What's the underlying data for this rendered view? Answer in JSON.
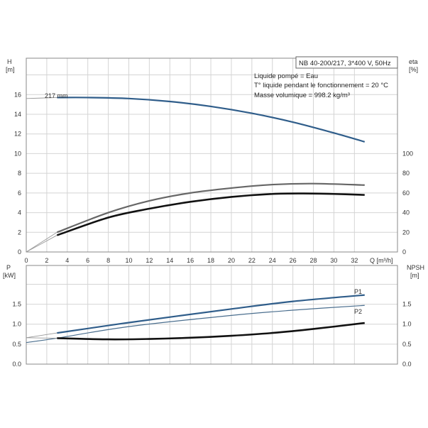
{
  "chart_data": [
    {
      "type": "line",
      "title": "NB 40-200/217, 3*400 V, 50Hz",
      "info_lines": [
        "Liquide pompé = Eau",
        "T° liquide pendant le fonctionnement = 20 °C",
        "Masse volumique = 998.2 kg/m³"
      ],
      "curve_label": "217 mm",
      "xlabel": "Q [m³/h]",
      "ylabel": "H",
      "ylabel_unit": "[m]",
      "y2label": "eta",
      "y2label_unit": "[%]",
      "xlim": [
        0,
        36.2
      ],
      "ylim": [
        0,
        19.7
      ],
      "y2lim": [
        0,
        197
      ],
      "x_ticks": [
        "0",
        "2",
        "4",
        "6",
        "8",
        "10",
        "12",
        "14",
        "16",
        "18",
        "20",
        "22",
        "24",
        "26",
        "28",
        "30",
        "32"
      ],
      "y_ticks": [
        "0",
        "2",
        "4",
        "6",
        "8",
        "10",
        "12",
        "14",
        "16"
      ],
      "y2_ticks": [
        "0",
        "20",
        "40",
        "60",
        "80",
        "100"
      ],
      "grid": true,
      "series": [
        {
          "name": "H",
          "axis": "y",
          "color": "#2f5d8a",
          "width": 2.2,
          "thin_until": 3,
          "x": [
            0,
            3,
            6,
            10,
            14,
            18,
            22,
            26,
            30,
            33
          ],
          "values": [
            15.6,
            15.7,
            15.7,
            15.6,
            15.3,
            14.8,
            14.1,
            13.2,
            12.1,
            11.2
          ]
        },
        {
          "name": "eta (gray)",
          "axis": "y2",
          "color": "#666666",
          "width": 2.2,
          "thin_until": 3,
          "x": [
            0,
            3,
            8,
            12,
            16,
            20,
            24,
            28,
            33
          ],
          "values": [
            0,
            20,
            40,
            52,
            60,
            65,
            68.5,
            69.5,
            68
          ]
        },
        {
          "name": "eta (black)",
          "axis": "y2",
          "color": "#111111",
          "width": 2.6,
          "thin_until": 3,
          "x": [
            0,
            3,
            8,
            12,
            16,
            20,
            24,
            27,
            30,
            33
          ],
          "values": [
            0,
            17,
            35,
            44,
            51,
            56,
            59,
            59.5,
            59,
            58
          ]
        }
      ]
    },
    {
      "type": "line",
      "ylabel": "P",
      "ylabel_unit": "[kW]",
      "y2label": "NPSH",
      "y2label_unit": "[m]",
      "xlim": [
        0,
        36.2
      ],
      "ylim": [
        0,
        2.47
      ],
      "y_ticks": [
        "0.0",
        "0.5",
        "1.0",
        "1.5"
      ],
      "y2_ticks": [
        "0.0",
        "0.5",
        "1.0",
        "1.5"
      ],
      "grid": true,
      "series": [
        {
          "name": "P1",
          "axis": "y",
          "color": "#2f5d8a",
          "width": 2.2,
          "thin_until": 3,
          "x": [
            0,
            3,
            10,
            20,
            26,
            33
          ],
          "values": [
            0.66,
            0.78,
            1.04,
            1.38,
            1.57,
            1.73
          ]
        },
        {
          "name": "P2",
          "axis": "y",
          "color": "#4a6e8e",
          "width": 1.2,
          "thin_until": 0,
          "x": [
            0,
            3,
            10,
            20,
            26,
            33
          ],
          "values": [
            0.54,
            0.65,
            0.94,
            1.22,
            1.35,
            1.47
          ]
        },
        {
          "name": "NPSH",
          "axis": "y2",
          "color": "#111111",
          "width": 2.6,
          "thin_until": 3,
          "x": [
            0,
            3,
            8,
            12,
            16,
            20,
            24,
            28,
            33
          ],
          "values": [
            0.66,
            0.65,
            0.62,
            0.63,
            0.66,
            0.71,
            0.78,
            0.88,
            1.03
          ]
        }
      ]
    }
  ]
}
